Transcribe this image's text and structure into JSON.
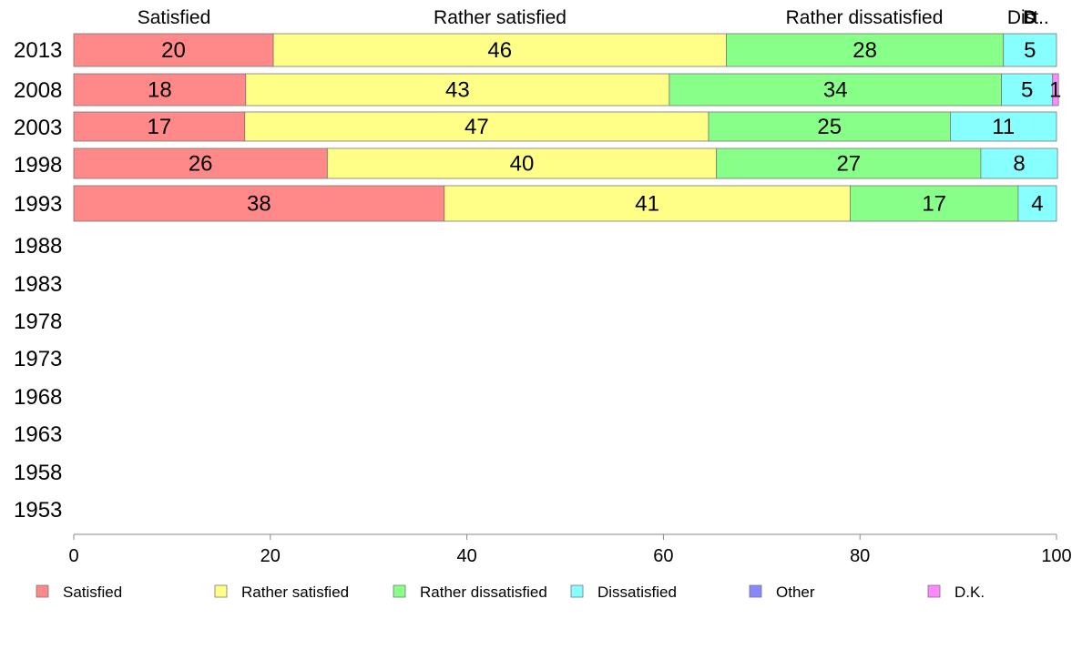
{
  "chart_data": {
    "type": "bar",
    "orientation": "horizontal",
    "stacked": true,
    "categories": [
      "2013",
      "2008",
      "2003",
      "1998",
      "1993",
      "1988",
      "1983",
      "1978",
      "1973",
      "1968",
      "1963",
      "1958",
      "1953"
    ],
    "series": [
      {
        "name": "Satisfied",
        "values": [
          20.3,
          17.5,
          17.4,
          25.8,
          37.7,
          null,
          null,
          null,
          null,
          null,
          null,
          null,
          null
        ]
      },
      {
        "name": "Rather satisfied",
        "values": [
          46.1,
          43.1,
          47.2,
          39.6,
          41.3,
          null,
          null,
          null,
          null,
          null,
          null,
          null,
          null
        ]
      },
      {
        "name": "Rather dissatisfied",
        "values": [
          28.2,
          33.8,
          24.6,
          26.9,
          17.1,
          null,
          null,
          null,
          null,
          null,
          null,
          null,
          null
        ]
      },
      {
        "name": "Dissatisfied",
        "values": [
          5.4,
          5.2,
          10.8,
          7.8,
          3.9,
          null,
          null,
          null,
          null,
          null,
          null,
          null,
          null
        ]
      },
      {
        "name": "Other",
        "values": [
          0,
          0,
          0,
          0,
          0,
          null,
          null,
          null,
          null,
          null,
          null,
          null,
          null
        ]
      },
      {
        "name": "D.K.",
        "values": [
          0,
          0.6,
          0,
          0,
          0,
          null,
          null,
          null,
          null,
          null,
          null,
          null,
          null
        ]
      }
    ],
    "data_labels": [
      [
        "20",
        "46",
        "28",
        "5",
        "",
        ""
      ],
      [
        "18",
        "43",
        "34",
        "5",
        "",
        "1"
      ],
      [
        "17",
        "47",
        "25",
        "11",
        "",
        ""
      ],
      [
        "26",
        "40",
        "27",
        "8",
        "",
        ""
      ],
      [
        "38",
        "41",
        "17",
        "4",
        "",
        ""
      ]
    ],
    "column_headers": [
      "Satisfied",
      "Rather satisfied",
      "Rather dissatisfied",
      "Dis",
      "D",
      "t.."
    ],
    "xlim": [
      0,
      100
    ],
    "xticks": [
      "0",
      "20",
      "40",
      "60",
      "80",
      "100"
    ],
    "legend_labels": [
      "Satisfied",
      "Rather satisfied",
      "Rather dissatisfied",
      "Dissatisfied",
      "Other",
      "D.K."
    ],
    "legend_position": "bottom",
    "colors": [
      "#ff8888",
      "#ffff88",
      "#88ff88",
      "#88ffff",
      "#8888ff",
      "#ff88ff"
    ],
    "grid": false
  }
}
